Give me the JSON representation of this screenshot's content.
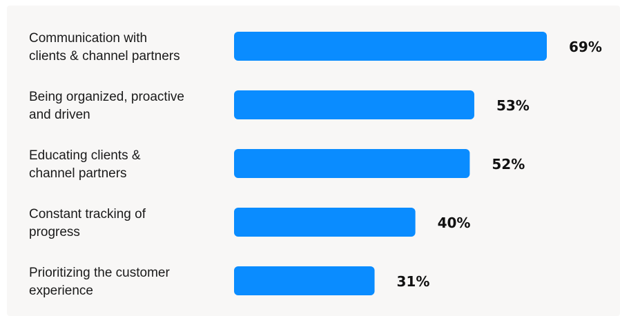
{
  "chart_data": {
    "type": "bar",
    "orientation": "horizontal",
    "categories": [
      [
        "Communication with",
        "clients & channel partners"
      ],
      [
        "Being organized, proactive",
        "and driven"
      ],
      [
        "Educating clients &",
        "channel partners"
      ],
      [
        "Constant tracking of",
        "progress"
      ],
      [
        "Prioritizing the customer",
        "experience"
      ]
    ],
    "values": [
      69,
      53,
      52,
      40,
      31
    ],
    "value_labels": [
      "69%",
      "53%",
      "52%",
      "40%",
      "31%"
    ],
    "unit": "%",
    "xlim": [
      0,
      69
    ],
    "title": "",
    "xlabel": "",
    "ylabel": "",
    "grid": false,
    "legend": "none",
    "bar_color": "#0a8cff",
    "background_color": "#f8f7f6"
  }
}
